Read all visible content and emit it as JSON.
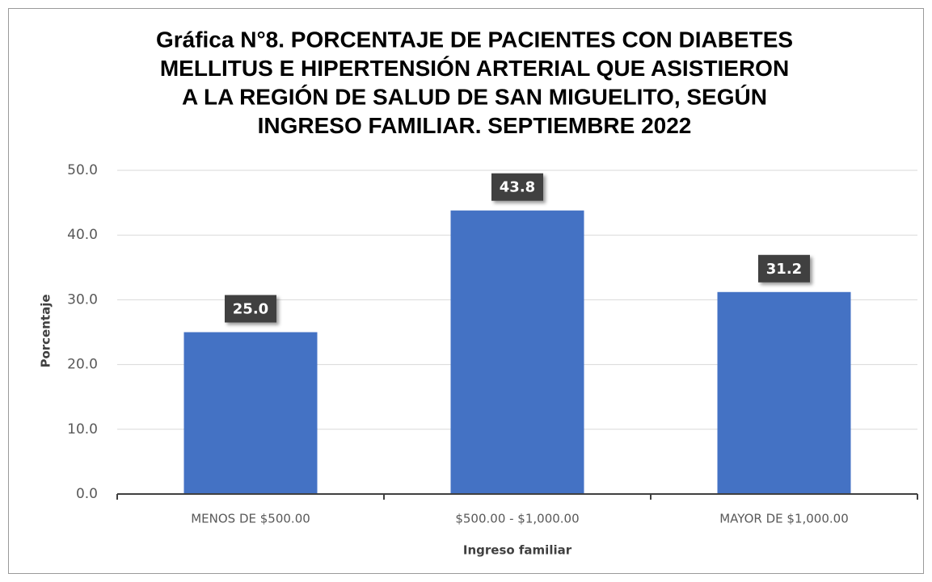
{
  "chart_data": {
    "type": "bar",
    "title": [
      "Gráfica N°8. PORCENTAJE DE PACIENTES CON DIABETES",
      "MELLITUS E HIPERTENSIÓN ARTERIAL QUE ASISTIERON",
      "A LA REGIÓN DE SALUD DE SAN MIGUELITO, SEGÚN",
      "INGRESO FAMILIAR. SEPTIEMBRE 2022"
    ],
    "x_label": "Ingreso familiar",
    "y_label": "Porcentaje",
    "categories": [
      "MENOS DE $500.00",
      "$500.00 -  $1,000.00",
      "MAYOR DE $1,000.00"
    ],
    "values": [
      25.0,
      43.8,
      31.2
    ],
    "value_labels": [
      "25.0",
      "43.8",
      "31.2"
    ],
    "color": "#4472c4",
    "ylim": [
      0,
      50
    ],
    "yticks": [
      {
        "value": 0,
        "label": "0.0"
      },
      {
        "value": 10,
        "label": "10.0"
      },
      {
        "value": 20,
        "label": "20.0"
      },
      {
        "value": 30,
        "label": "30.0"
      },
      {
        "value": 40,
        "label": "40.0"
      },
      {
        "value": 50,
        "label": "50.0"
      }
    ],
    "grid": true
  }
}
